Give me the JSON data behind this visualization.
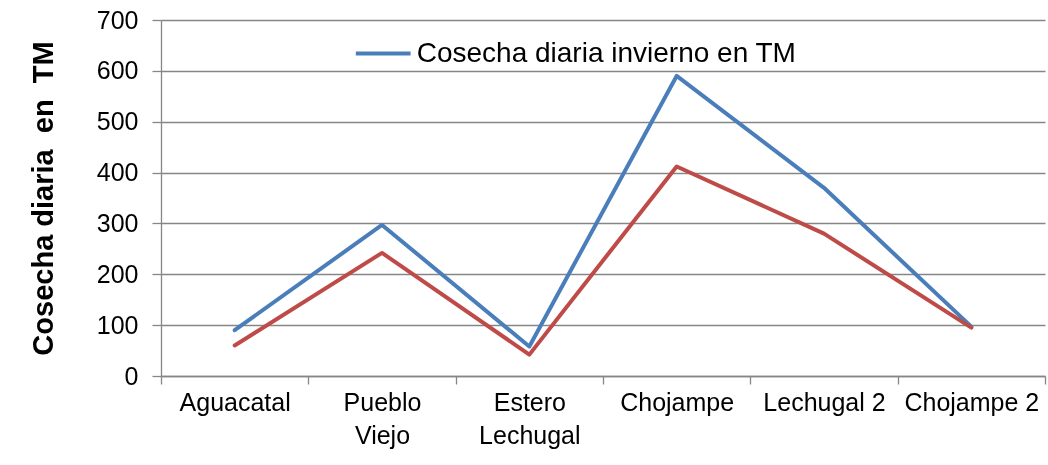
{
  "chart_data": {
    "type": "line",
    "ylabel": "Cosecha diaria  en  TM",
    "categories": [
      "Aguacatal",
      "Pueblo Viejo",
      "Estero Lechugal",
      "Chojampe",
      "Lechugal 2",
      "Chojampe 2"
    ],
    "series": [
      {
        "name": "Cosecha diaria invierno en TM",
        "color": "#4a7ebb",
        "values": [
          90,
          297,
          58,
          590,
          370,
          97
        ]
      },
      {
        "color": "#be4b48",
        "values": [
          60,
          242,
          42,
          412,
          280,
          95
        ]
      }
    ],
    "ylim": [
      0,
      700
    ],
    "yticks": [
      0,
      100,
      200,
      300,
      400,
      500,
      600,
      700
    ],
    "grid": "y",
    "legend": "top",
    "line_style": "solid"
  }
}
